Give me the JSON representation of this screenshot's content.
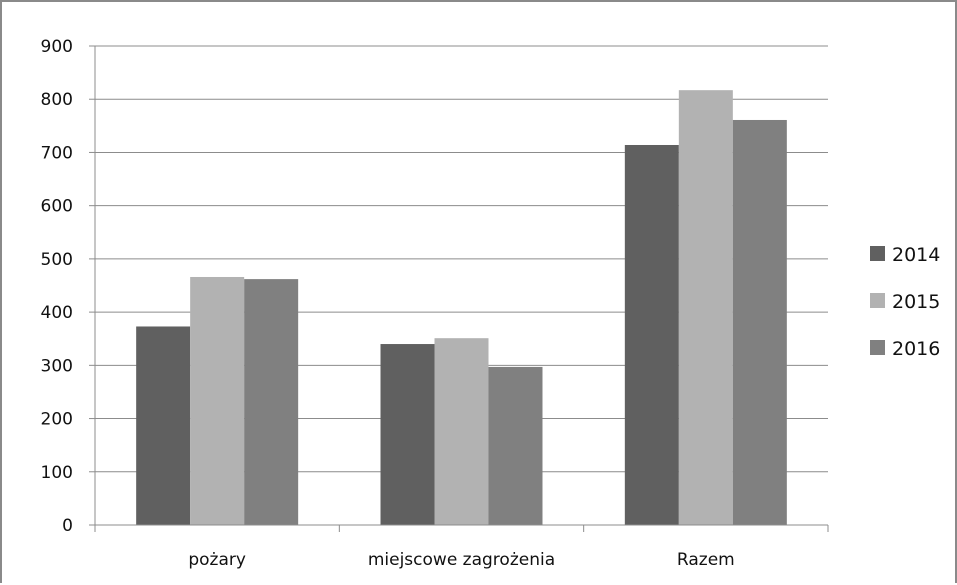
{
  "chart_data": {
    "type": "bar",
    "title": "",
    "xlabel": "",
    "ylabel": "",
    "categories": [
      "pożary",
      "miejscowe zagrożenia",
      "Razem"
    ],
    "series": [
      {
        "name": "2014",
        "values": [
          373,
          340,
          714
        ],
        "color": "#606060"
      },
      {
        "name": "2015",
        "values": [
          466,
          351,
          817
        ],
        "color": "#b2b2b2"
      },
      {
        "name": "2016",
        "values": [
          462,
          297,
          761
        ],
        "color": "#808080"
      }
    ],
    "ylim": [
      0,
      900
    ],
    "yticks": [
      "0",
      "100",
      "200",
      "300",
      "400",
      "500",
      "600",
      "700",
      "800",
      "900"
    ],
    "grid": true,
    "legend": "right",
    "colors": {
      "grid": "#8c8c8c",
      "axis": "#8c8c8c"
    }
  }
}
